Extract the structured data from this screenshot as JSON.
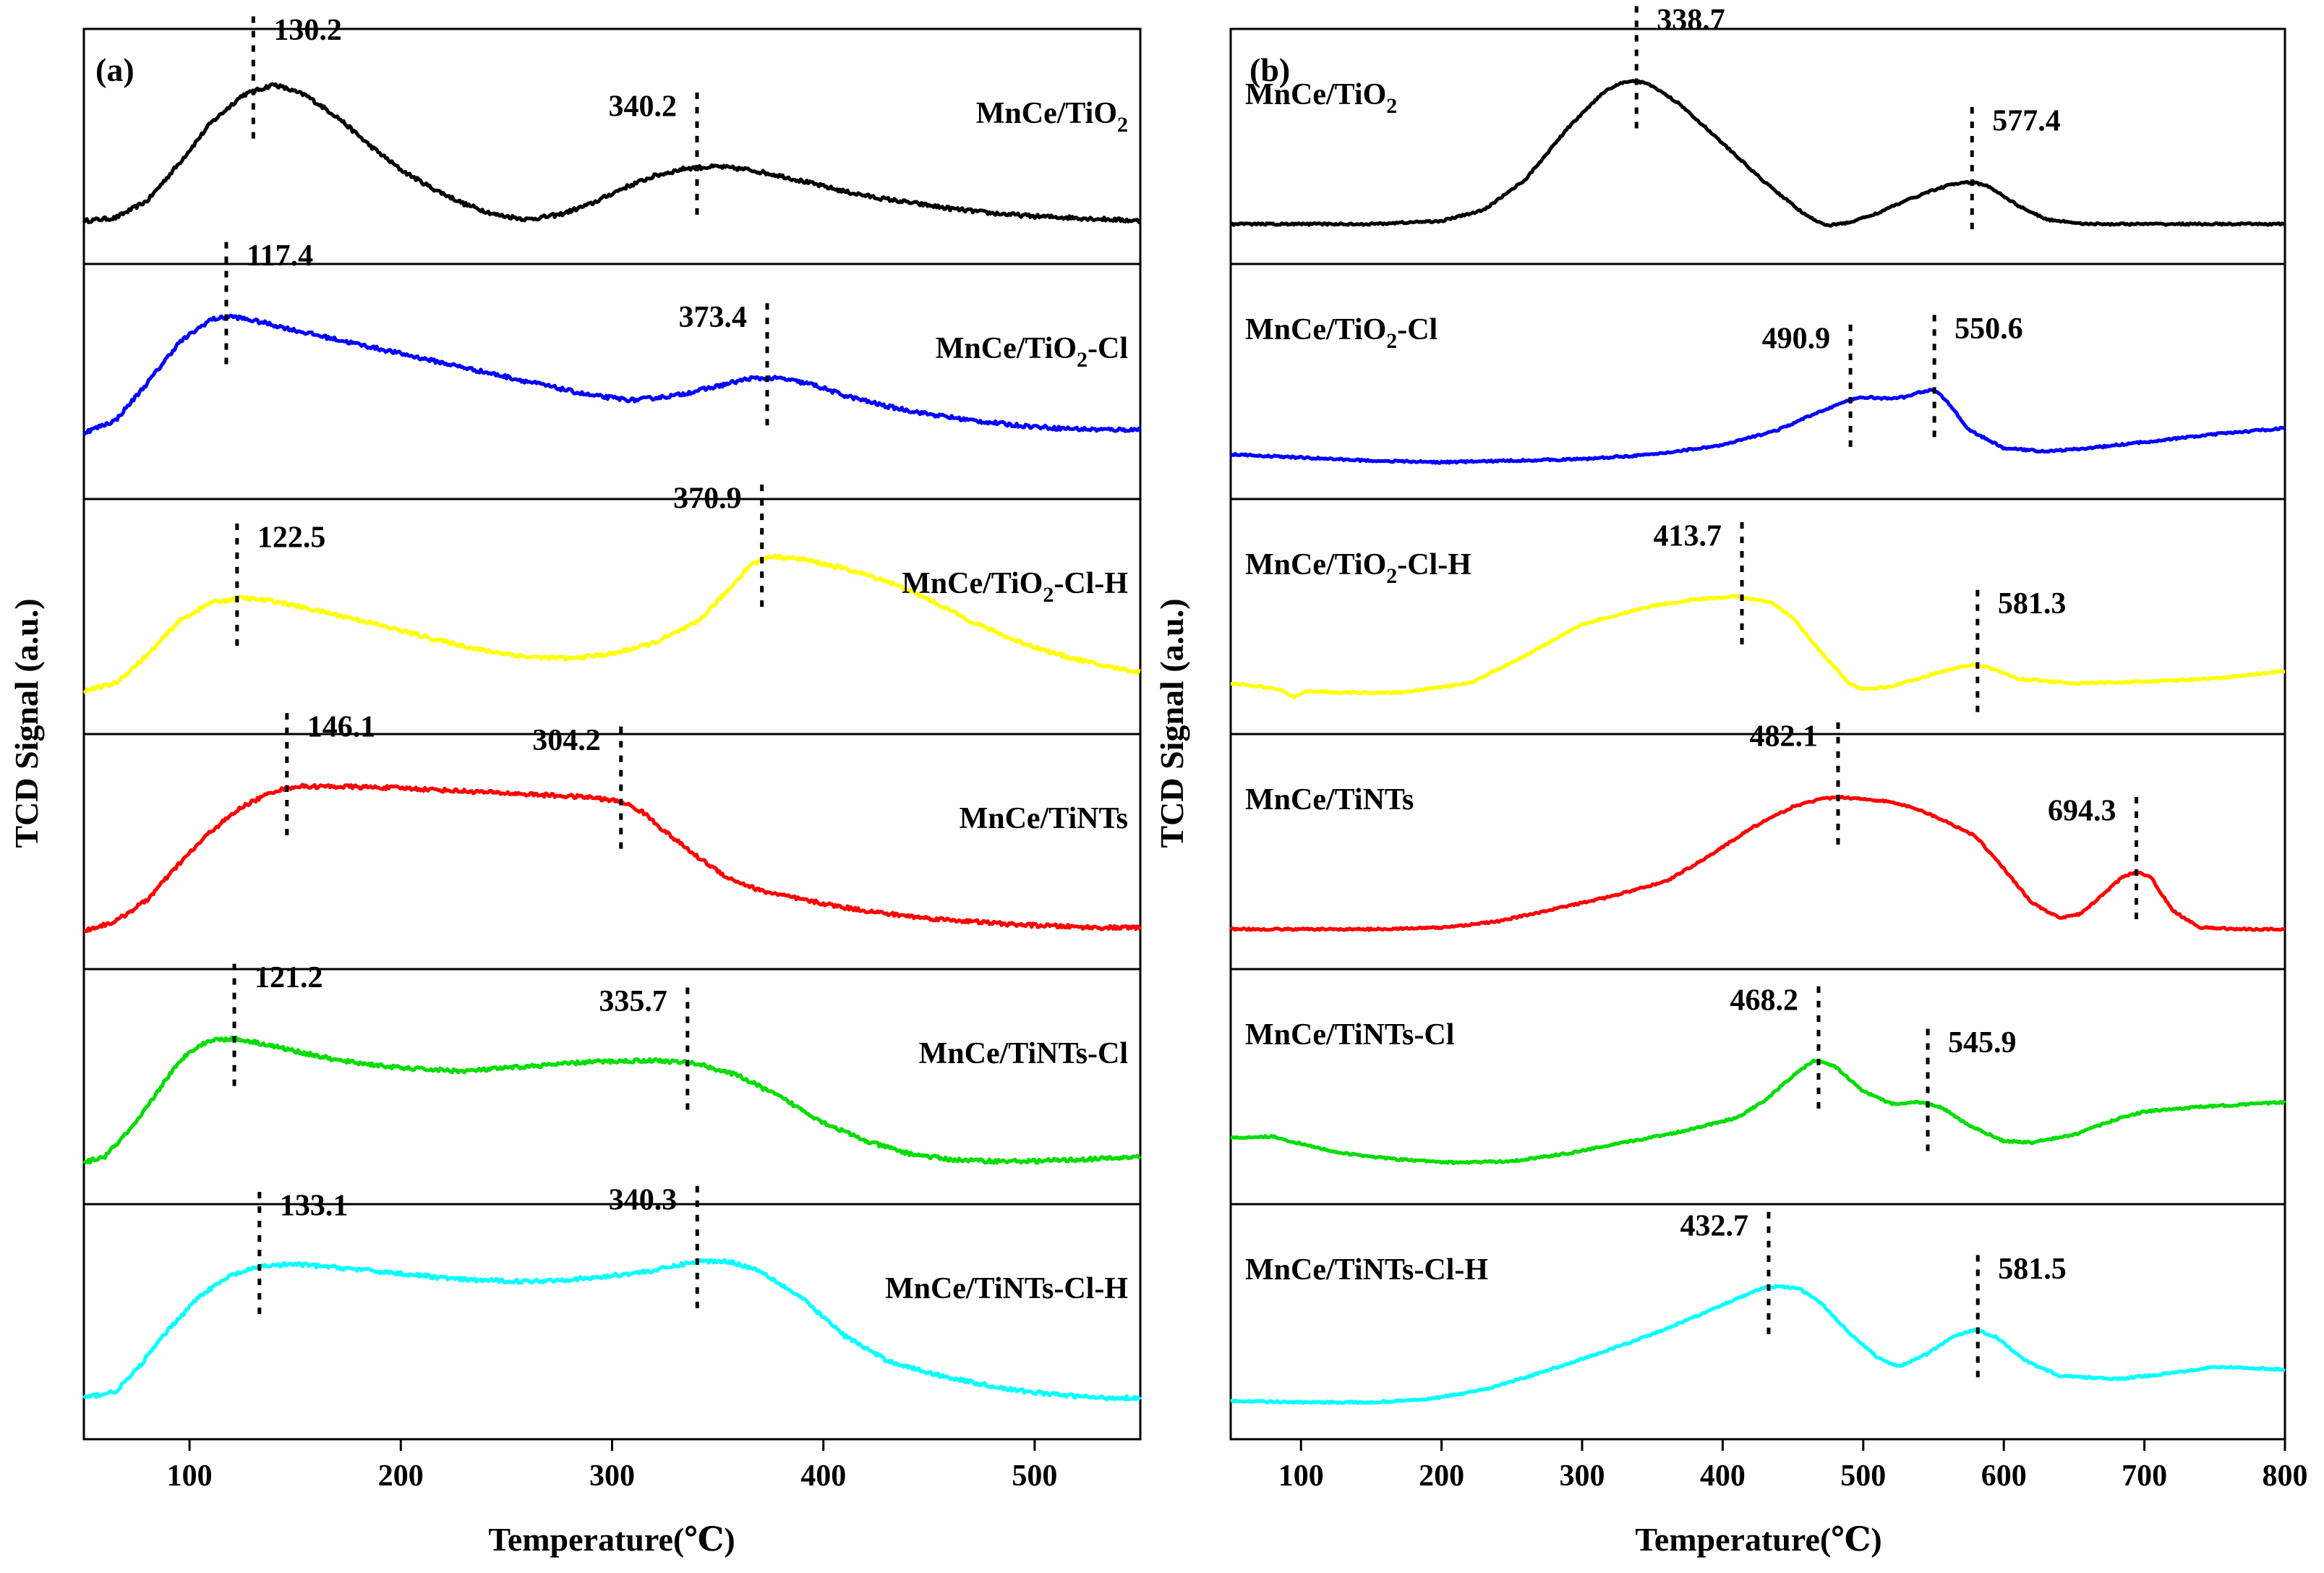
{
  "chart_data": [
    {
      "panel_label": "(a)",
      "type": "line",
      "xlabel": "Temperature(℃)",
      "ylabel": "TCD Signal (a.u.)",
      "xlim": [
        50,
        550
      ],
      "xticks": [
        "100",
        "200",
        "300",
        "400",
        "500"
      ],
      "xtick_values": [
        100,
        200,
        300,
        400,
        500
      ],
      "series": [
        {
          "name": "MnCe/TiO₂",
          "name_main": "MnCe/TiO",
          "name_sub": "2",
          "name_tail": "",
          "color": "#000000",
          "x": [
            50,
            65,
            80,
            95,
            110,
            125,
            140,
            155,
            170,
            185,
            200,
            215,
            230,
            245,
            260,
            275,
            290,
            305,
            320,
            335,
            350,
            365,
            380,
            395,
            410,
            425,
            440,
            460,
            480,
            500,
            520,
            535,
            550
          ],
          "y": [
            0.05,
            0.07,
            0.18,
            0.42,
            0.68,
            0.86,
            0.93,
            0.86,
            0.72,
            0.54,
            0.38,
            0.26,
            0.16,
            0.09,
            0.06,
            0.09,
            0.16,
            0.26,
            0.34,
            0.39,
            0.4,
            0.38,
            0.34,
            0.29,
            0.24,
            0.2,
            0.17,
            0.13,
            0.1,
            0.08,
            0.07,
            0.06,
            0.05
          ],
          "peaks": [
            {
              "label": "130.2",
              "x": 130.2,
              "label_side": "right"
            },
            {
              "label": "340.2",
              "x": 340.2,
              "label_side": "left"
            }
          ]
        },
        {
          "name": "MnCe/TiO₂-Cl",
          "name_main": "MnCe/TiO",
          "name_sub": "2",
          "name_tail": "-Cl",
          "color": "#0000ff",
          "x": [
            50,
            65,
            80,
            95,
            110,
            120,
            135,
            150,
            170,
            190,
            210,
            230,
            250,
            270,
            290,
            310,
            330,
            350,
            365,
            380,
            395,
            410,
            430,
            450,
            470,
            490,
            510,
            530,
            550
          ],
          "y": [
            0.2,
            0.28,
            0.52,
            0.78,
            0.93,
            0.95,
            0.91,
            0.86,
            0.8,
            0.74,
            0.68,
            0.62,
            0.56,
            0.5,
            0.44,
            0.41,
            0.44,
            0.5,
            0.55,
            0.55,
            0.51,
            0.44,
            0.37,
            0.32,
            0.28,
            0.25,
            0.23,
            0.22,
            0.22
          ],
          "peaks": [
            {
              "label": "117.4",
              "x": 117.4,
              "label_side": "right"
            },
            {
              "label": "373.4",
              "x": 373.4,
              "label_side": "left"
            }
          ]
        },
        {
          "name": "MnCe/TiO₂-Cl-H",
          "name_main": "MnCe/TiO",
          "name_sub": "2",
          "name_tail": "-Cl-H",
          "color": "#ffff00",
          "x": [
            50,
            65,
            80,
            95,
            110,
            125,
            140,
            160,
            180,
            200,
            220,
            240,
            260,
            280,
            300,
            320,
            340,
            355,
            365,
            375,
            390,
            410,
            430,
            450,
            470,
            490,
            510,
            530,
            550
          ],
          "y": [
            0.05,
            0.1,
            0.28,
            0.5,
            0.62,
            0.65,
            0.63,
            0.57,
            0.51,
            0.44,
            0.37,
            0.31,
            0.27,
            0.26,
            0.29,
            0.36,
            0.49,
            0.7,
            0.86,
            0.92,
            0.9,
            0.84,
            0.76,
            0.64,
            0.5,
            0.38,
            0.29,
            0.22,
            0.17
          ],
          "peaks": [
            {
              "label": "122.5",
              "x": 122.5,
              "label_side": "right"
            },
            {
              "label": "370.9",
              "x": 370.9,
              "label_side": "left"
            }
          ]
        },
        {
          "name": "MnCe/TiNTs",
          "name_main": "MnCe/TiNTs",
          "name_sub": "",
          "name_tail": "",
          "color": "#ff0000",
          "x": [
            50,
            65,
            80,
            95,
            110,
            125,
            140,
            150,
            170,
            200,
            230,
            260,
            290,
            305,
            315,
            325,
            340,
            355,
            370,
            390,
            410,
            430,
            450,
            470,
            490,
            510,
            530,
            550
          ],
          "y": [
            0.02,
            0.08,
            0.22,
            0.45,
            0.66,
            0.82,
            0.92,
            0.95,
            0.95,
            0.94,
            0.92,
            0.9,
            0.88,
            0.85,
            0.78,
            0.66,
            0.5,
            0.36,
            0.28,
            0.22,
            0.17,
            0.13,
            0.1,
            0.08,
            0.06,
            0.05,
            0.04,
            0.04
          ],
          "peaks": [
            {
              "label": "146.1",
              "x": 146.1,
              "label_side": "right"
            },
            {
              "label": "304.2",
              "x": 304.2,
              "label_side": "left"
            }
          ]
        },
        {
          "name": "MnCe/TiNTs-Cl",
          "name_main": "MnCe/TiNTs-Cl",
          "name_sub": "",
          "name_tail": "",
          "color": "#00dd00",
          "x": [
            50,
            60,
            75,
            90,
            100,
            110,
            120,
            130,
            150,
            170,
            200,
            230,
            260,
            290,
            320,
            340,
            360,
            380,
            400,
            420,
            440,
            460,
            480,
            500,
            520,
            540,
            550
          ],
          "y": [
            0.04,
            0.08,
            0.3,
            0.6,
            0.76,
            0.83,
            0.84,
            0.82,
            0.76,
            0.7,
            0.65,
            0.63,
            0.66,
            0.69,
            0.7,
            0.68,
            0.6,
            0.46,
            0.3,
            0.18,
            0.1,
            0.06,
            0.05,
            0.05,
            0.06,
            0.07,
            0.08
          ],
          "peaks": [
            {
              "label": "121.2",
              "x": 121.2,
              "label_side": "right"
            },
            {
              "label": "335.7",
              "x": 335.7,
              "label_side": "left"
            }
          ]
        },
        {
          "name": "MnCe/TiNTs-Cl-H",
          "name_main": "MnCe/TiNTs-Cl-H",
          "name_sub": "",
          "name_tail": "",
          "color": "#00ffff",
          "x": [
            50,
            65,
            75,
            90,
            105,
            120,
            135,
            150,
            170,
            200,
            230,
            260,
            290,
            320,
            340,
            355,
            370,
            390,
            410,
            430,
            450,
            470,
            490,
            510,
            530,
            550
          ],
          "y": [
            0.04,
            0.08,
            0.22,
            0.48,
            0.7,
            0.83,
            0.89,
            0.9,
            0.88,
            0.84,
            0.8,
            0.79,
            0.81,
            0.86,
            0.92,
            0.92,
            0.86,
            0.68,
            0.44,
            0.28,
            0.2,
            0.14,
            0.09,
            0.06,
            0.04,
            0.04
          ],
          "peaks": [
            {
              "label": "133.1",
              "x": 133.1,
              "label_side": "right"
            },
            {
              "label": "340.3",
              "x": 340.3,
              "label_side": "left"
            }
          ]
        }
      ]
    },
    {
      "panel_label": "(b)",
      "type": "line",
      "xlabel": "Temperature(℃)",
      "ylabel": "TCD Signal (a.u.)",
      "xlim": [
        50,
        800
      ],
      "xticks": [
        "100",
        "200",
        "300",
        "400",
        "500",
        "600",
        "700",
        "800"
      ],
      "xtick_values": [
        100,
        200,
        300,
        400,
        500,
        600,
        700,
        800
      ],
      "series": [
        {
          "name": "MnCe/TiO₂",
          "name_main": "MnCe/TiO",
          "name_sub": "2",
          "name_tail": "",
          "color": "#000000",
          "x": [
            50,
            100,
            150,
            200,
            230,
            260,
            290,
            315,
            330,
            340,
            350,
            370,
            400,
            430,
            460,
            475,
            490,
            510,
            530,
            550,
            565,
            578,
            590,
            610,
            630,
            660,
            700,
            750,
            800
          ],
          "y": [
            0.03,
            0.03,
            0.03,
            0.05,
            0.12,
            0.32,
            0.65,
            0.88,
            0.95,
            0.95,
            0.92,
            0.8,
            0.55,
            0.3,
            0.08,
            0.02,
            0.04,
            0.1,
            0.18,
            0.25,
            0.29,
            0.3,
            0.27,
            0.15,
            0.06,
            0.03,
            0.03,
            0.03,
            0.03
          ],
          "peaks": [
            {
              "label": "338.7",
              "x": 338.7,
              "label_side": "right"
            },
            {
              "label": "577.4",
              "x": 577.4,
              "label_side": "right"
            }
          ]
        },
        {
          "name": "MnCe/TiO₂-Cl",
          "name_main": "MnCe/TiO",
          "name_sub": "2",
          "name_tail": "-Cl",
          "color": "#0000ff",
          "x": [
            50,
            100,
            150,
            200,
            250,
            300,
            350,
            400,
            440,
            470,
            490,
            500,
            515,
            530,
            540,
            550,
            560,
            575,
            600,
            630,
            660,
            700,
            750,
            800
          ],
          "y": [
            0.06,
            0.04,
            0.02,
            0.01,
            0.02,
            0.03,
            0.06,
            0.12,
            0.22,
            0.34,
            0.41,
            0.43,
            0.42,
            0.43,
            0.46,
            0.48,
            0.4,
            0.22,
            0.1,
            0.08,
            0.1,
            0.14,
            0.19,
            0.23
          ],
          "peaks": [
            {
              "label": "490.9",
              "x": 490.9,
              "label_side": "left"
            },
            {
              "label": "550.6",
              "x": 550.6,
              "label_side": "right"
            }
          ]
        },
        {
          "name": "MnCe/TiO₂-Cl-H",
          "name_main": "MnCe/TiO",
          "name_sub": "2",
          "name_tail": "-Cl-H",
          "color": "#ffff00",
          "x": [
            50,
            70,
            85,
            95,
            105,
            130,
            170,
            220,
            260,
            300,
            350,
            380,
            410,
            435,
            450,
            470,
            490,
            500,
            520,
            550,
            570,
            580,
            590,
            610,
            650,
            700,
            750,
            800
          ],
          "y": [
            0.1,
            0.08,
            0.06,
            0.01,
            0.05,
            0.04,
            0.04,
            0.1,
            0.28,
            0.48,
            0.6,
            0.64,
            0.66,
            0.62,
            0.52,
            0.3,
            0.1,
            0.06,
            0.08,
            0.16,
            0.21,
            0.22,
            0.2,
            0.13,
            0.1,
            0.11,
            0.13,
            0.18
          ],
          "peaks": [
            {
              "label": "413.7",
              "x": 413.7,
              "label_side": "left"
            },
            {
              "label": "581.3",
              "x": 581.3,
              "label_side": "right"
            }
          ]
        },
        {
          "name": "MnCe/TiNTs",
          "name_main": "MnCe/TiNTs",
          "name_sub": "",
          "name_tail": "",
          "color": "#ff0000",
          "x": [
            50,
            100,
            150,
            200,
            240,
            280,
            320,
            360,
            390,
            420,
            450,
            470,
            485,
            500,
            520,
            540,
            560,
            580,
            600,
            620,
            640,
            655,
            670,
            685,
            695,
            705,
            720,
            740,
            770,
            800
          ],
          "y": [
            0.03,
            0.03,
            0.03,
            0.04,
            0.08,
            0.16,
            0.24,
            0.34,
            0.5,
            0.68,
            0.82,
            0.87,
            0.88,
            0.87,
            0.85,
            0.8,
            0.72,
            0.63,
            0.42,
            0.2,
            0.1,
            0.13,
            0.25,
            0.37,
            0.4,
            0.36,
            0.15,
            0.04,
            0.03,
            0.03
          ],
          "peaks": [
            {
              "label": "482.1",
              "x": 482.1,
              "label_side": "left"
            },
            {
              "label": "694.3",
              "x": 694.3,
              "label_side": "left"
            }
          ]
        },
        {
          "name": "MnCe/TiNTs-Cl",
          "name_main": "MnCe/TiNTs-Cl",
          "name_sub": "",
          "name_tail": "",
          "color": "#00dd00",
          "x": [
            50,
            80,
            100,
            130,
            170,
            210,
            250,
            290,
            330,
            370,
            410,
            430,
            450,
            465,
            480,
            500,
            520,
            540,
            555,
            575,
            600,
            620,
            650,
            680,
            700,
            740,
            800
          ],
          "y": [
            0.2,
            0.21,
            0.16,
            0.1,
            0.06,
            0.04,
            0.05,
            0.1,
            0.17,
            0.24,
            0.33,
            0.44,
            0.6,
            0.7,
            0.66,
            0.5,
            0.42,
            0.43,
            0.4,
            0.28,
            0.18,
            0.17,
            0.22,
            0.32,
            0.37,
            0.4,
            0.43
          ],
          "peaks": [
            {
              "label": "468.2",
              "x": 468.2,
              "label_side": "left"
            },
            {
              "label": "545.9",
              "x": 545.9,
              "label_side": "right"
            }
          ]
        },
        {
          "name": "MnCe/TiNTs-Cl-H",
          "name_main": "MnCe/TiNTs-Cl-H",
          "name_sub": "",
          "name_tail": "",
          "color": "#00ffff",
          "x": [
            50,
            100,
            150,
            190,
            230,
            270,
            310,
            350,
            380,
            410,
            430,
            440,
            455,
            470,
            490,
            510,
            525,
            545,
            565,
            580,
            595,
            615,
            640,
            680,
            720,
            750,
            780,
            800
          ],
          "y": [
            0.02,
            0.01,
            0.01,
            0.03,
            0.09,
            0.2,
            0.32,
            0.45,
            0.56,
            0.68,
            0.75,
            0.76,
            0.74,
            0.65,
            0.46,
            0.3,
            0.24,
            0.32,
            0.44,
            0.48,
            0.43,
            0.28,
            0.18,
            0.16,
            0.2,
            0.24,
            0.23,
            0.22
          ],
          "peaks": [
            {
              "label": "432.7",
              "x": 432.7,
              "label_side": "left"
            },
            {
              "label": "581.5",
              "x": 581.5,
              "label_side": "right"
            }
          ]
        }
      ]
    }
  ]
}
